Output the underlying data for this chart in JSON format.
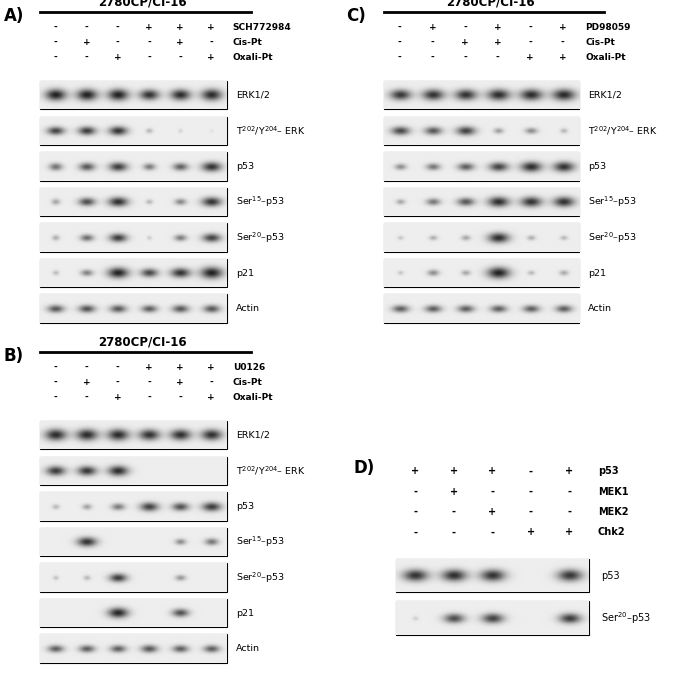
{
  "panel_A": {
    "label": "A)",
    "title": "2780CP/CI-16",
    "drug_labels": [
      "SCH772984",
      "Cis-Pt",
      "Oxali-Pt"
    ],
    "drug_vals": [
      [
        "-",
        "-",
        "-",
        "+",
        "+",
        "+"
      ],
      [
        "-",
        "+",
        "-",
        "-",
        "+",
        "-"
      ],
      [
        "-",
        "-",
        "+",
        "-",
        "-",
        "+"
      ]
    ],
    "blot_labels": [
      "ERK1/2",
      "T^202/Y^204- ERK",
      "p53",
      "Ser^15-p53",
      "Ser^20-p53",
      "p21",
      "Actin"
    ],
    "n_lanes": 6,
    "bands": [
      [
        [
          0.85,
          0.55,
          1.0
        ],
        [
          0.85,
          0.55,
          1.0
        ],
        [
          0.85,
          0.55,
          1.0
        ],
        [
          0.8,
          0.5,
          0.92
        ],
        [
          0.82,
          0.52,
          0.95
        ],
        [
          0.85,
          0.55,
          0.95
        ]
      ],
      [
        [
          0.7,
          0.38,
          0.85
        ],
        [
          0.72,
          0.4,
          0.88
        ],
        [
          0.75,
          0.42,
          0.92
        ],
        [
          0.28,
          0.22,
          0.3
        ],
        [
          0.15,
          0.18,
          0.18
        ],
        [
          0.1,
          0.15,
          0.12
        ]
      ],
      [
        [
          0.55,
          0.35,
          0.62
        ],
        [
          0.65,
          0.38,
          0.75
        ],
        [
          0.75,
          0.42,
          0.88
        ],
        [
          0.5,
          0.32,
          0.58
        ],
        [
          0.62,
          0.36,
          0.7
        ],
        [
          0.8,
          0.45,
          0.92
        ]
      ],
      [
        [
          0.35,
          0.28,
          0.38
        ],
        [
          0.68,
          0.38,
          0.8
        ],
        [
          0.8,
          0.44,
          0.95
        ],
        [
          0.28,
          0.22,
          0.3
        ],
        [
          0.48,
          0.3,
          0.52
        ],
        [
          0.8,
          0.44,
          0.92
        ]
      ],
      [
        [
          0.3,
          0.25,
          0.35
        ],
        [
          0.55,
          0.32,
          0.65
        ],
        [
          0.72,
          0.4,
          0.88
        ],
        [
          0.18,
          0.18,
          0.22
        ],
        [
          0.5,
          0.3,
          0.58
        ],
        [
          0.75,
          0.4,
          0.85
        ]
      ],
      [
        [
          0.25,
          0.22,
          0.28
        ],
        [
          0.5,
          0.3,
          0.55
        ],
        [
          0.85,
          0.5,
          1.0
        ],
        [
          0.7,
          0.4,
          0.82
        ],
        [
          0.8,
          0.45,
          0.92
        ],
        [
          0.9,
          0.55,
          1.0
        ]
      ],
      [
        [
          0.68,
          0.36,
          0.75
        ],
        [
          0.68,
          0.36,
          0.78
        ],
        [
          0.68,
          0.36,
          0.75
        ],
        [
          0.65,
          0.34,
          0.72
        ],
        [
          0.68,
          0.36,
          0.75
        ],
        [
          0.68,
          0.36,
          0.75
        ]
      ]
    ]
  },
  "panel_B": {
    "label": "B)",
    "title": "2780CP/CI-16",
    "drug_labels": [
      "U0126",
      "Cis-Pt",
      "Oxali-Pt"
    ],
    "drug_vals": [
      [
        "-",
        "-",
        "-",
        "+",
        "+",
        "+"
      ],
      [
        "-",
        "+",
        "-",
        "-",
        "+",
        "-"
      ],
      [
        "-",
        "-",
        "+",
        "-",
        "-",
        "+"
      ]
    ],
    "blot_labels": [
      "ERK1/2",
      "T^202/Y^204- ERK",
      "p53",
      "Ser^15-p53",
      "Ser^20-p53",
      "p21",
      "Actin"
    ],
    "n_lanes": 6,
    "bands": [
      [
        [
          0.88,
          0.55,
          0.95
        ],
        [
          0.88,
          0.55,
          0.95
        ],
        [
          0.88,
          0.55,
          0.95
        ],
        [
          0.85,
          0.52,
          0.92
        ],
        [
          0.85,
          0.52,
          0.93
        ],
        [
          0.85,
          0.52,
          0.93
        ]
      ],
      [
        [
          0.78,
          0.45,
          0.88
        ],
        [
          0.78,
          0.45,
          0.9
        ],
        [
          0.82,
          0.48,
          0.95
        ],
        [
          0.0,
          0.0,
          0.0
        ],
        [
          0.0,
          0.0,
          0.0
        ],
        [
          0.0,
          0.0,
          0.0
        ]
      ],
      [
        [
          0.28,
          0.22,
          0.3
        ],
        [
          0.38,
          0.26,
          0.4
        ],
        [
          0.55,
          0.32,
          0.58
        ],
        [
          0.75,
          0.42,
          0.85
        ],
        [
          0.68,
          0.38,
          0.78
        ],
        [
          0.78,
          0.42,
          0.88
        ]
      ],
      [
        [
          0.0,
          0.0,
          0.0
        ],
        [
          0.8,
          0.44,
          0.92
        ],
        [
          0.0,
          0.0,
          0.0
        ],
        [
          0.0,
          0.0,
          0.0
        ],
        [
          0.45,
          0.28,
          0.5
        ],
        [
          0.55,
          0.32,
          0.6
        ]
      ],
      [
        [
          0.22,
          0.2,
          0.25
        ],
        [
          0.28,
          0.22,
          0.3
        ],
        [
          0.72,
          0.4,
          0.88
        ],
        [
          0.0,
          0.0,
          0.0
        ],
        [
          0.42,
          0.26,
          0.46
        ],
        [
          0.0,
          0.0,
          0.0
        ]
      ],
      [
        [
          0.0,
          0.0,
          0.0
        ],
        [
          0.0,
          0.0,
          0.0
        ],
        [
          0.82,
          0.48,
          0.98
        ],
        [
          0.0,
          0.0,
          0.0
        ],
        [
          0.68,
          0.38,
          0.78
        ],
        [
          0.0,
          0.0,
          0.0
        ]
      ],
      [
        [
          0.65,
          0.34,
          0.72
        ],
        [
          0.65,
          0.34,
          0.72
        ],
        [
          0.65,
          0.34,
          0.72
        ],
        [
          0.68,
          0.36,
          0.75
        ],
        [
          0.65,
          0.34,
          0.72
        ],
        [
          0.65,
          0.34,
          0.72
        ]
      ]
    ]
  },
  "panel_C": {
    "label": "C)",
    "title": "2780CP/CI-16",
    "drug_labels": [
      "PD98059",
      "Cis-Pt",
      "Oxali-Pt"
    ],
    "drug_vals": [
      [
        "-",
        "+",
        "-",
        "+",
        "-",
        "+"
      ],
      [
        "-",
        "-",
        "+",
        "+",
        "-",
        "-"
      ],
      [
        "-",
        "-",
        "-",
        "-",
        "+",
        "+"
      ]
    ],
    "blot_labels": [
      "ERK1/2",
      "T^202/Y^204- ERK",
      "p53",
      "Ser^15-p53",
      "Ser^20-p53",
      "p21",
      "Actin"
    ],
    "n_lanes": 6,
    "bands": [
      [
        [
          0.82,
          0.5,
          0.9
        ],
        [
          0.85,
          0.52,
          0.92
        ],
        [
          0.85,
          0.52,
          0.92
        ],
        [
          0.88,
          0.54,
          0.95
        ],
        [
          0.88,
          0.54,
          0.95
        ],
        [
          0.9,
          0.55,
          0.96
        ]
      ],
      [
        [
          0.72,
          0.4,
          0.82
        ],
        [
          0.68,
          0.38,
          0.75
        ],
        [
          0.75,
          0.42,
          0.85
        ],
        [
          0.38,
          0.26,
          0.42
        ],
        [
          0.48,
          0.28,
          0.5
        ],
        [
          0.28,
          0.22,
          0.3
        ]
      ],
      [
        [
          0.45,
          0.28,
          0.5
        ],
        [
          0.55,
          0.32,
          0.6
        ],
        [
          0.65,
          0.36,
          0.72
        ],
        [
          0.75,
          0.42,
          0.85
        ],
        [
          0.82,
          0.48,
          0.95
        ],
        [
          0.82,
          0.48,
          0.92
        ]
      ],
      [
        [
          0.35,
          0.24,
          0.38
        ],
        [
          0.55,
          0.32,
          0.6
        ],
        [
          0.68,
          0.38,
          0.75
        ],
        [
          0.82,
          0.48,
          0.95
        ],
        [
          0.82,
          0.48,
          0.92
        ],
        [
          0.82,
          0.48,
          0.93
        ]
      ],
      [
        [
          0.22,
          0.18,
          0.24
        ],
        [
          0.32,
          0.22,
          0.35
        ],
        [
          0.35,
          0.24,
          0.38
        ],
        [
          0.82,
          0.48,
          0.95
        ],
        [
          0.32,
          0.22,
          0.35
        ],
        [
          0.28,
          0.2,
          0.3
        ]
      ],
      [
        [
          0.22,
          0.18,
          0.24
        ],
        [
          0.45,
          0.28,
          0.5
        ],
        [
          0.35,
          0.24,
          0.38
        ],
        [
          0.88,
          0.54,
          1.0
        ],
        [
          0.28,
          0.2,
          0.3
        ],
        [
          0.35,
          0.24,
          0.36
        ]
      ],
      [
        [
          0.65,
          0.34,
          0.72
        ],
        [
          0.65,
          0.34,
          0.72
        ],
        [
          0.65,
          0.34,
          0.72
        ],
        [
          0.65,
          0.34,
          0.72
        ],
        [
          0.65,
          0.34,
          0.72
        ],
        [
          0.65,
          0.34,
          0.72
        ]
      ]
    ]
  },
  "panel_D": {
    "label": "D)",
    "drug_labels": [
      "p53",
      "MEK1",
      "MEK2",
      "Chk2"
    ],
    "drug_vals": [
      [
        "+",
        "+",
        "+",
        "-",
        "+"
      ],
      [
        "-",
        "+",
        "-",
        "-",
        "-"
      ],
      [
        "-",
        "-",
        "+",
        "-",
        "-"
      ],
      [
        "-",
        "-",
        "-",
        "+",
        "+"
      ]
    ],
    "blot_labels": [
      "p53",
      "Ser^20-p53"
    ],
    "n_lanes": 5,
    "bands": [
      [
        [
          0.82,
          0.48,
          0.92
        ],
        [
          0.82,
          0.48,
          0.94
        ],
        [
          0.82,
          0.48,
          0.92
        ],
        [
          0.0,
          0.0,
          0.0
        ],
        [
          0.82,
          0.48,
          0.9
        ]
      ],
      [
        [
          0.18,
          0.15,
          0.2
        ],
        [
          0.68,
          0.38,
          0.8
        ],
        [
          0.72,
          0.4,
          0.85
        ],
        [
          0.0,
          0.0,
          0.0
        ],
        [
          0.72,
          0.4,
          0.88
        ]
      ]
    ]
  }
}
